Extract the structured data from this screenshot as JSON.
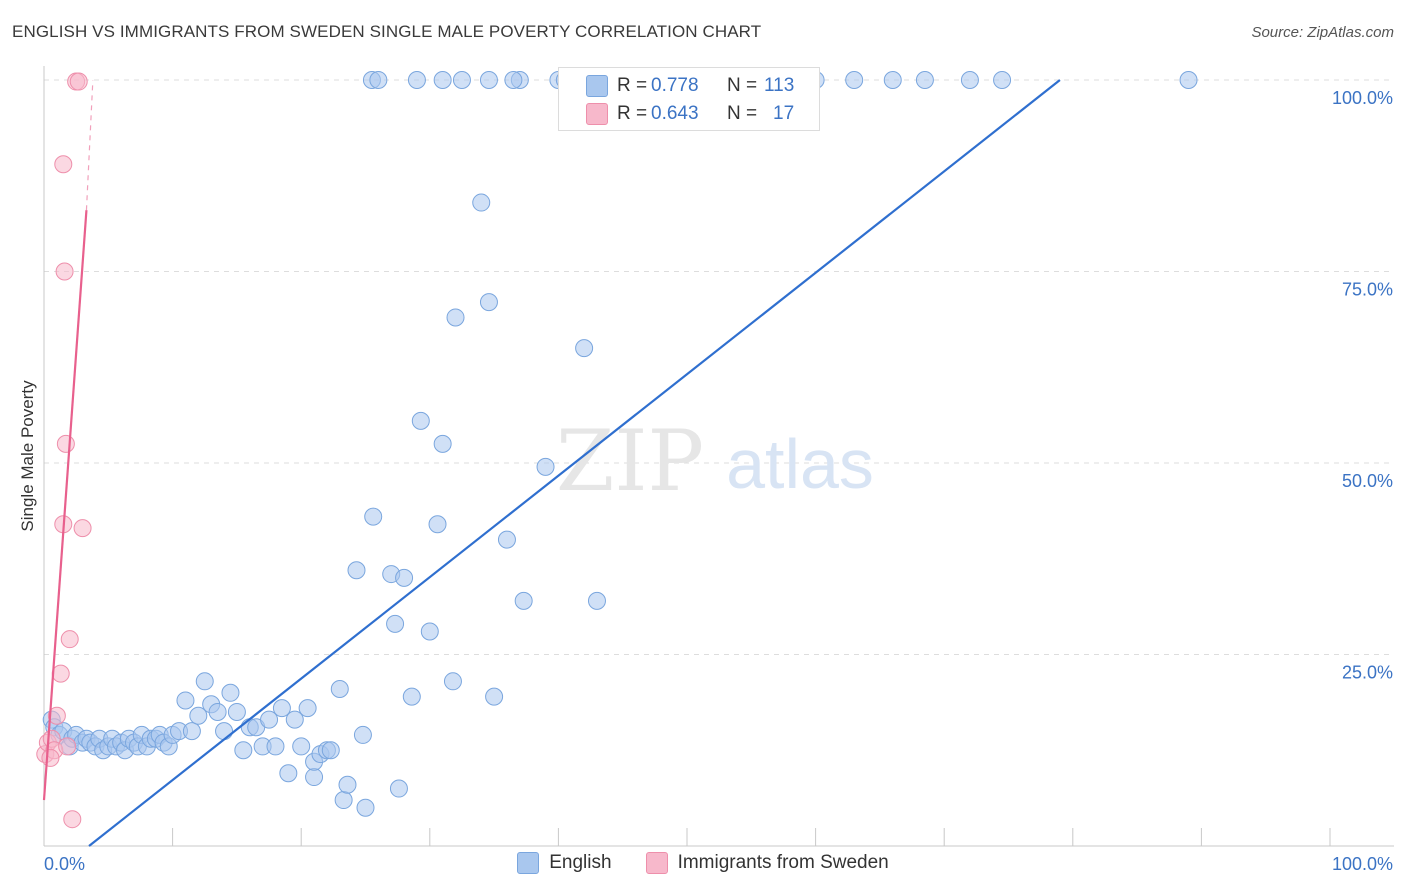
{
  "title": "ENGLISH VS IMMIGRANTS FROM SWEDEN SINGLE MALE POVERTY CORRELATION CHART",
  "source": "Source: ZipAtlas.com",
  "watermark": {
    "zip": "ZIP",
    "atlas": "atlas"
  },
  "legend": [
    {
      "label": "English",
      "color": "#9bbde8"
    },
    {
      "label": "Immigrants from Sweden",
      "color": "#f4a9bf"
    }
  ],
  "stats": [
    {
      "r_label": "R =",
      "r_value": "0.778",
      "n_label": "N =",
      "n_value": "113"
    },
    {
      "r_label": "R =",
      "r_value": "0.643",
      "n_label": "N =",
      "n_value": "17"
    }
  ],
  "colors": {
    "english_fill": "#a9c7ee",
    "english_stroke": "#7aa6de",
    "english_line": "#2f6fcf",
    "sweden_fill": "#f7b8cb",
    "sweden_stroke": "#ee8fab",
    "sweden_line": "#e8608d",
    "axis_text": "#3b73c4",
    "grid": "#dddddd"
  },
  "chart_data": {
    "type": "scatter",
    "title": "ENGLISH VS IMMIGRANTS FROM SWEDEN SINGLE MALE POVERTY CORRELATION CHART",
    "xlabel": "",
    "ylabel": "Single Male Poverty",
    "xlim": [
      0,
      100
    ],
    "ylim": [
      0,
      100
    ],
    "x_tick_labels": [
      "0.0%",
      "100.0%"
    ],
    "y_tick_labels": [
      "100.0%",
      "75.0%",
      "50.0%",
      "25.0%"
    ],
    "y_tick_values": [
      100,
      75,
      50,
      25
    ],
    "grid": true,
    "legend_position": "bottom",
    "series": [
      {
        "name": "English",
        "points": [
          [
            0.6,
            16.5
          ],
          [
            0.8,
            15.5
          ],
          [
            1.2,
            14.5
          ],
          [
            1.5,
            15.0
          ],
          [
            2.0,
            13.0
          ],
          [
            2.2,
            14.0
          ],
          [
            2.5,
            14.5
          ],
          [
            3.0,
            13.5
          ],
          [
            3.3,
            14.0
          ],
          [
            3.6,
            13.5
          ],
          [
            4.0,
            13.0
          ],
          [
            4.3,
            14.0
          ],
          [
            4.6,
            12.5
          ],
          [
            5.0,
            13.0
          ],
          [
            5.3,
            14.0
          ],
          [
            5.6,
            13.0
          ],
          [
            6.0,
            13.5
          ],
          [
            6.3,
            12.5
          ],
          [
            6.6,
            14.0
          ],
          [
            7.0,
            13.5
          ],
          [
            7.3,
            13.0
          ],
          [
            7.6,
            14.5
          ],
          [
            8.0,
            13.0
          ],
          [
            8.3,
            14.0
          ],
          [
            8.7,
            14.0
          ],
          [
            9.0,
            14.5
          ],
          [
            9.3,
            13.5
          ],
          [
            9.7,
            13.0
          ],
          [
            10.0,
            14.5
          ],
          [
            10.5,
            15.0
          ],
          [
            11.0,
            19.0
          ],
          [
            11.5,
            15.0
          ],
          [
            12.0,
            17.0
          ],
          [
            12.5,
            21.5
          ],
          [
            13.0,
            18.5
          ],
          [
            13.5,
            17.5
          ],
          [
            14.0,
            15.0
          ],
          [
            14.5,
            20.0
          ],
          [
            15.0,
            17.5
          ],
          [
            15.5,
            12.5
          ],
          [
            16.0,
            15.5
          ],
          [
            16.5,
            15.5
          ],
          [
            17.0,
            13.0
          ],
          [
            17.5,
            16.5
          ],
          [
            18.0,
            13.0
          ],
          [
            18.5,
            18.0
          ],
          [
            19.0,
            9.5
          ],
          [
            19.5,
            16.5
          ],
          [
            20.0,
            13.0
          ],
          [
            20.5,
            18.0
          ],
          [
            21.0,
            9.0
          ],
          [
            21.0,
            11.0
          ],
          [
            21.5,
            12.0
          ],
          [
            22.0,
            12.5
          ],
          [
            22.3,
            12.5
          ],
          [
            23.0,
            20.5
          ],
          [
            23.3,
            6.0
          ],
          [
            23.6,
            8.0
          ],
          [
            24.3,
            36.0
          ],
          [
            24.8,
            14.5
          ],
          [
            25.0,
            5.0
          ],
          [
            25.6,
            43.0
          ],
          [
            27.0,
            35.5
          ],
          [
            27.3,
            29.0
          ],
          [
            27.6,
            7.5
          ],
          [
            28.0,
            35.0
          ],
          [
            28.6,
            19.5
          ],
          [
            29.3,
            55.5
          ],
          [
            30.0,
            28.0
          ],
          [
            30.6,
            42.0
          ],
          [
            31.0,
            52.5
          ],
          [
            31.8,
            21.5
          ],
          [
            32.0,
            69.0
          ],
          [
            32.5,
            100
          ],
          [
            34.0,
            84.0
          ],
          [
            34.6,
            71.0
          ],
          [
            34.6,
            100
          ],
          [
            35.0,
            19.5
          ],
          [
            36.0,
            40.0
          ],
          [
            37.0,
            100
          ],
          [
            37.3,
            32.0
          ],
          [
            39.0,
            49.5
          ],
          [
            40.0,
            100
          ],
          [
            42.0,
            65.0
          ],
          [
            43.0,
            32.0
          ],
          [
            44.5,
            100
          ],
          [
            46.0,
            100
          ],
          [
            52.0,
            100
          ],
          [
            55.0,
            100
          ],
          [
            57.0,
            100
          ],
          [
            59.5,
            100
          ],
          [
            63.0,
            100
          ],
          [
            68.5,
            100
          ],
          [
            72.0,
            100
          ],
          [
            74.5,
            100
          ],
          [
            89.0,
            100
          ],
          [
            40.5,
            100
          ],
          [
            41.5,
            100
          ],
          [
            47.0,
            100
          ],
          [
            66.0,
            100
          ],
          [
            60.0,
            100
          ],
          [
            56.5,
            100
          ],
          [
            58.0,
            100
          ],
          [
            53.5,
            100
          ],
          [
            49.5,
            100
          ],
          [
            45.5,
            100
          ],
          [
            48.0,
            100
          ],
          [
            50.5,
            100
          ],
          [
            25.5,
            100
          ],
          [
            26.0,
            100
          ],
          [
            29.0,
            100
          ],
          [
            31.0,
            100
          ],
          [
            36.5,
            100
          ]
        ]
      },
      {
        "name": "Immigrants from Sweden",
        "points": [
          [
            0.1,
            12.0
          ],
          [
            0.3,
            13.5
          ],
          [
            0.6,
            14.0
          ],
          [
            0.8,
            12.5
          ],
          [
            1.0,
            17.0
          ],
          [
            1.3,
            22.5
          ],
          [
            1.5,
            89.0
          ],
          [
            1.5,
            42.0
          ],
          [
            1.6,
            75.0
          ],
          [
            1.7,
            52.5
          ],
          [
            2.0,
            27.0
          ],
          [
            2.2,
            3.5
          ],
          [
            2.5,
            99.8
          ],
          [
            2.7,
            99.8
          ],
          [
            3.0,
            41.5
          ],
          [
            1.8,
            13.0
          ],
          [
            0.5,
            11.5
          ]
        ]
      }
    ],
    "trend_lines": [
      {
        "name": "English",
        "from": [
          3.5,
          0
        ],
        "to": [
          79,
          100
        ]
      },
      {
        "name": "Immigrants from Sweden",
        "from": [
          0,
          6
        ],
        "to": [
          3.3,
          83
        ],
        "dashed_to": [
          3.8,
          100
        ]
      }
    ]
  }
}
